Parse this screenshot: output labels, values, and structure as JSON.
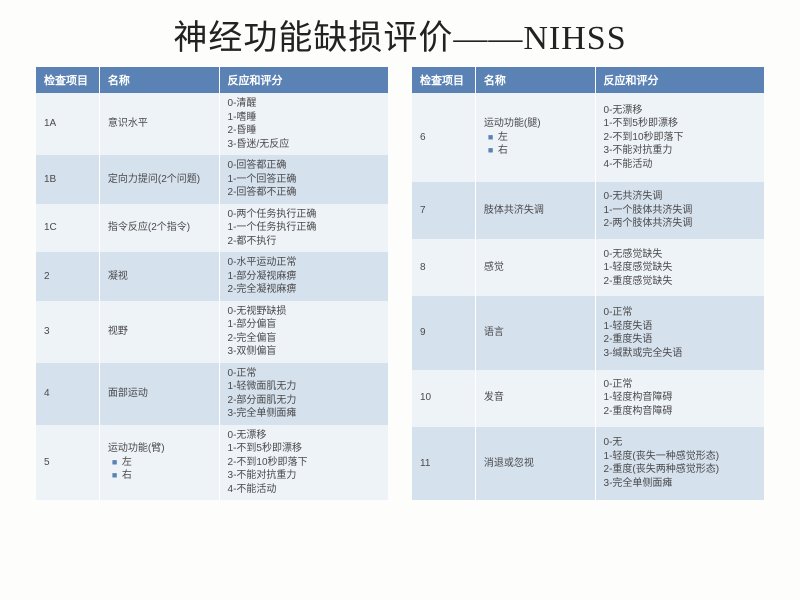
{
  "title": "神经功能缺损评价——NIHSS",
  "headers": [
    "检查项目",
    "名称",
    "反应和评分"
  ],
  "colors": {
    "header_bg": "#5a82b4",
    "row_odd": "#eef3f8",
    "row_even": "#d6e1ee",
    "bullet": "#5a82b4"
  },
  "left": [
    {
      "item": "1A",
      "name": "意识水平",
      "score": "0-清醒\n1-嗜睡\n2-昏睡\n3-昏迷/无反应"
    },
    {
      "item": "1B",
      "name": "定向力提问(2个问题)",
      "score": "0-回答都正确\n1-一个回答正确\n2-回答都不正确"
    },
    {
      "item": "1C",
      "name": "指令反应(2个指令)",
      "score": "0-两个任务执行正确\n1-一个任务执行正确\n2-都不执行"
    },
    {
      "item": "2",
      "name": "凝视",
      "score": "0-水平运动正常\n1-部分凝视麻痹\n2-完全凝视麻痹"
    },
    {
      "item": "3",
      "name": "视野",
      "score": "0-无视野缺损\n1-部分偏盲\n2-完全偏盲\n3-双侧偏盲"
    },
    {
      "item": "4",
      "name": "面部运动",
      "score": "0-正常\n1-轻微面肌无力\n2-部分面肌无力\n3-完全单侧面瘫"
    },
    {
      "item": "5",
      "name": "运动功能(臂)",
      "subs": [
        "左",
        "右"
      ],
      "score": "0-无漂移\n1-不到5秒即漂移\n2-不到10秒即落下\n3-不能对抗重力\n4-不能活动"
    }
  ],
  "right": [
    {
      "item": "6",
      "name": "运动功能(腿)",
      "subs": [
        "左",
        "右"
      ],
      "score": "0-无漂移\n1-不到5秒即漂移\n2-不到10秒即落下\n3-不能对抗重力\n4-不能活动"
    },
    {
      "item": "7",
      "name": "肢体共济失调",
      "score": "0-无共济失调\n1-一个肢体共济失调\n2-两个肢体共济失调"
    },
    {
      "item": "8",
      "name": "感觉",
      "score": "0-无感觉缺失\n1-轻度感觉缺失\n2-重度感觉缺失"
    },
    {
      "item": "9",
      "name": "语言",
      "score": "0-正常\n1-轻度失语\n2-重度失语\n3-缄默或完全失语"
    },
    {
      "item": "10",
      "name": "发音",
      "score": "0-正常\n1-轻度构音障碍\n2-重度构音障碍"
    },
    {
      "item": "11",
      "name": "消退或忽视",
      "score": "0-无\n1-轻度(丧失一种感觉形态)\n2-重度(丧失两种感觉形态)\n3-完全单侧面瘫"
    }
  ]
}
